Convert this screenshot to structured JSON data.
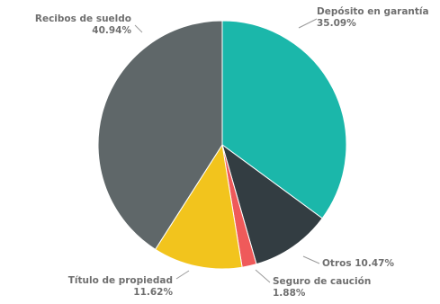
{
  "chart_data": {
    "type": "pie",
    "title": "",
    "slices": [
      {
        "label": "Depósito en garantía",
        "value": 35.09,
        "value_label": "35.09%",
        "color": "#1bb7aa"
      },
      {
        "label": "Otros",
        "value": 10.47,
        "value_label": "10.47%",
        "color": "#333d42"
      },
      {
        "label": "Seguro de caución",
        "value": 1.88,
        "value_label": "1.88%",
        "color": "#ef5a5a"
      },
      {
        "label": "Título de propiedad",
        "value": 11.62,
        "value_label": "11.62%",
        "color": "#f2c41d"
      },
      {
        "label": "Recibos de sueldo",
        "value": 40.94,
        "value_label": "40.94%",
        "color": "#5f6769"
      }
    ],
    "legend": "none"
  }
}
